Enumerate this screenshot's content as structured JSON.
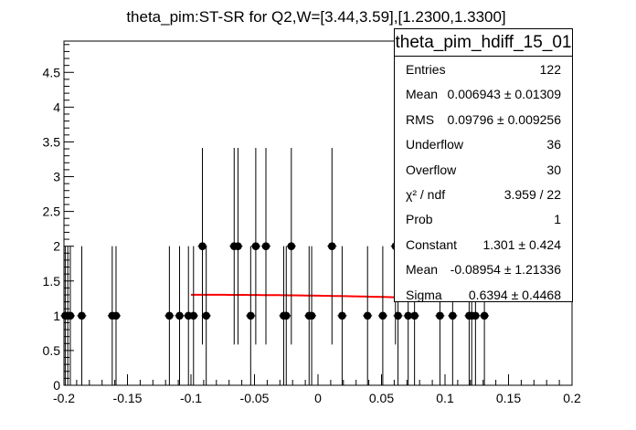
{
  "chart_data": {
    "type": "scatter",
    "title": "theta_pim:ST-SR for Q2,W=[3.44,3.59],[1.2300,1.3300]",
    "xlabel": "",
    "ylabel": "",
    "xlim": [
      -0.2,
      0.2
    ],
    "ylim": [
      0,
      4.95
    ],
    "x_ticks": [
      "-0.2",
      "-0.15",
      "-0.1",
      "-0.05",
      "0",
      "0.05",
      "0.1",
      "0.15",
      "0.2"
    ],
    "y_ticks": [
      "0.5",
      "1",
      "1.5",
      "2",
      "2.5",
      "3",
      "3.5",
      "4",
      "4.5"
    ],
    "points": [
      {
        "x": -0.199,
        "y": 1
      },
      {
        "x": -0.197,
        "y": 1
      },
      {
        "x": -0.195,
        "y": 1
      },
      {
        "x": -0.186,
        "y": 1
      },
      {
        "x": -0.162,
        "y": 1
      },
      {
        "x": -0.159,
        "y": 1
      },
      {
        "x": -0.117,
        "y": 1
      },
      {
        "x": -0.109,
        "y": 1
      },
      {
        "x": -0.102,
        "y": 1
      },
      {
        "x": -0.098,
        "y": 1
      },
      {
        "x": -0.091,
        "y": 2
      },
      {
        "x": -0.088,
        "y": 1
      },
      {
        "x": -0.066,
        "y": 2
      },
      {
        "x": -0.063,
        "y": 2
      },
      {
        "x": -0.053,
        "y": 1
      },
      {
        "x": -0.049,
        "y": 2
      },
      {
        "x": -0.041,
        "y": 2
      },
      {
        "x": -0.027,
        "y": 1
      },
      {
        "x": -0.025,
        "y": 1
      },
      {
        "x": -0.021,
        "y": 2
      },
      {
        "x": -0.007,
        "y": 1
      },
      {
        "x": -0.005,
        "y": 1
      },
      {
        "x": 0.011,
        "y": 2
      },
      {
        "x": 0.019,
        "y": 1
      },
      {
        "x": 0.039,
        "y": 1
      },
      {
        "x": 0.051,
        "y": 1
      },
      {
        "x": 0.061,
        "y": 2
      },
      {
        "x": 0.063,
        "y": 1
      },
      {
        "x": 0.071,
        "y": 1
      },
      {
        "x": 0.076,
        "y": 1
      },
      {
        "x": 0.096,
        "y": 1
      },
      {
        "x": 0.106,
        "y": 1
      },
      {
        "x": 0.119,
        "y": 1
      },
      {
        "x": 0.121,
        "y": 1
      },
      {
        "x": 0.124,
        "y": 1
      },
      {
        "x": 0.131,
        "y": 1
      }
    ],
    "fit": {
      "type": "gaussian",
      "constant": 1.301,
      "mean": -0.08954,
      "sigma": 0.6394,
      "x_range": [
        -0.1,
        0.06
      ]
    },
    "colors": {
      "points": "#000000",
      "fit": "#ff0000",
      "axes": "#000000"
    }
  },
  "stats": {
    "title": "theta_pim_hdiff_15_01",
    "rows": [
      {
        "key": "Entries",
        "value": "122"
      },
      {
        "key": "Mean",
        "value": "0.006943 ± 0.01309"
      },
      {
        "key": "RMS",
        "value": "0.09796 ± 0.009256"
      },
      {
        "key": "Underflow",
        "value": "36"
      },
      {
        "key": "Overflow",
        "value": "30"
      },
      {
        "key": "χ² / ndf",
        "value": "3.959 / 22"
      },
      {
        "key": "Prob",
        "value": "1"
      },
      {
        "key": "Constant",
        "value": "1.301 ± 0.424"
      },
      {
        "key": "Mean",
        "value": "-0.08954 ± 1.21336"
      },
      {
        "key": "Sigma",
        "value": "0.6394 ± 0.4468"
      }
    ]
  }
}
